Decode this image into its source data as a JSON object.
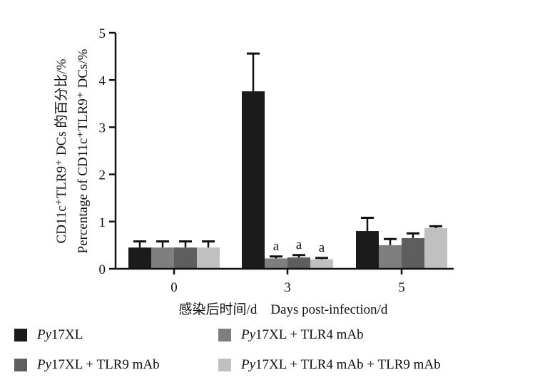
{
  "chart_data": {
    "type": "bar",
    "categories": [
      "0",
      "3",
      "5"
    ],
    "ylabel_line1": "CD11c⁺TLR9⁺ DCs 的百分比/%",
    "ylabel_line2": "Percentage of CD11c⁺TLR9⁺ DCs/%",
    "xlabel": "感染后时间/d    Days post-infection/d",
    "ylim": [
      0,
      5
    ],
    "yticks": [
      "0",
      "1",
      "2",
      "3",
      "4",
      "5"
    ],
    "series": [
      {
        "name_italic": "Py",
        "name_rest": "17XL",
        "color": "#1b1b1b",
        "values": [
          0.45,
          3.76,
          0.8
        ],
        "errors": [
          0.13,
          0.8,
          0.28
        ]
      },
      {
        "name_italic": "Py",
        "name_rest": "17XL + TLR4  mAb",
        "color": "#7f7f7f",
        "values": [
          0.45,
          0.22,
          0.5
        ],
        "errors": [
          0.13,
          0.04,
          0.13
        ]
      },
      {
        "name_italic": "Py",
        "name_rest": "17XL + TLR9  mAb",
        "color": "#5e5e5e",
        "values": [
          0.45,
          0.24,
          0.65
        ],
        "errors": [
          0.13,
          0.05,
          0.1
        ]
      },
      {
        "name_italic": "Py",
        "name_rest": "17XL + TLR4  mAb + TLR9  mAb",
        "color": "#c0c0c0",
        "values": [
          0.45,
          0.2,
          0.86
        ],
        "errors": [
          0.13,
          0.03,
          0.04
        ]
      }
    ],
    "annotations": [
      {
        "category": 1,
        "series": 1,
        "text": "a"
      },
      {
        "category": 1,
        "series": 2,
        "text": "a"
      },
      {
        "category": 1,
        "series": 3,
        "text": "a"
      }
    ],
    "legend_position": "bottom",
    "grid": false
  }
}
